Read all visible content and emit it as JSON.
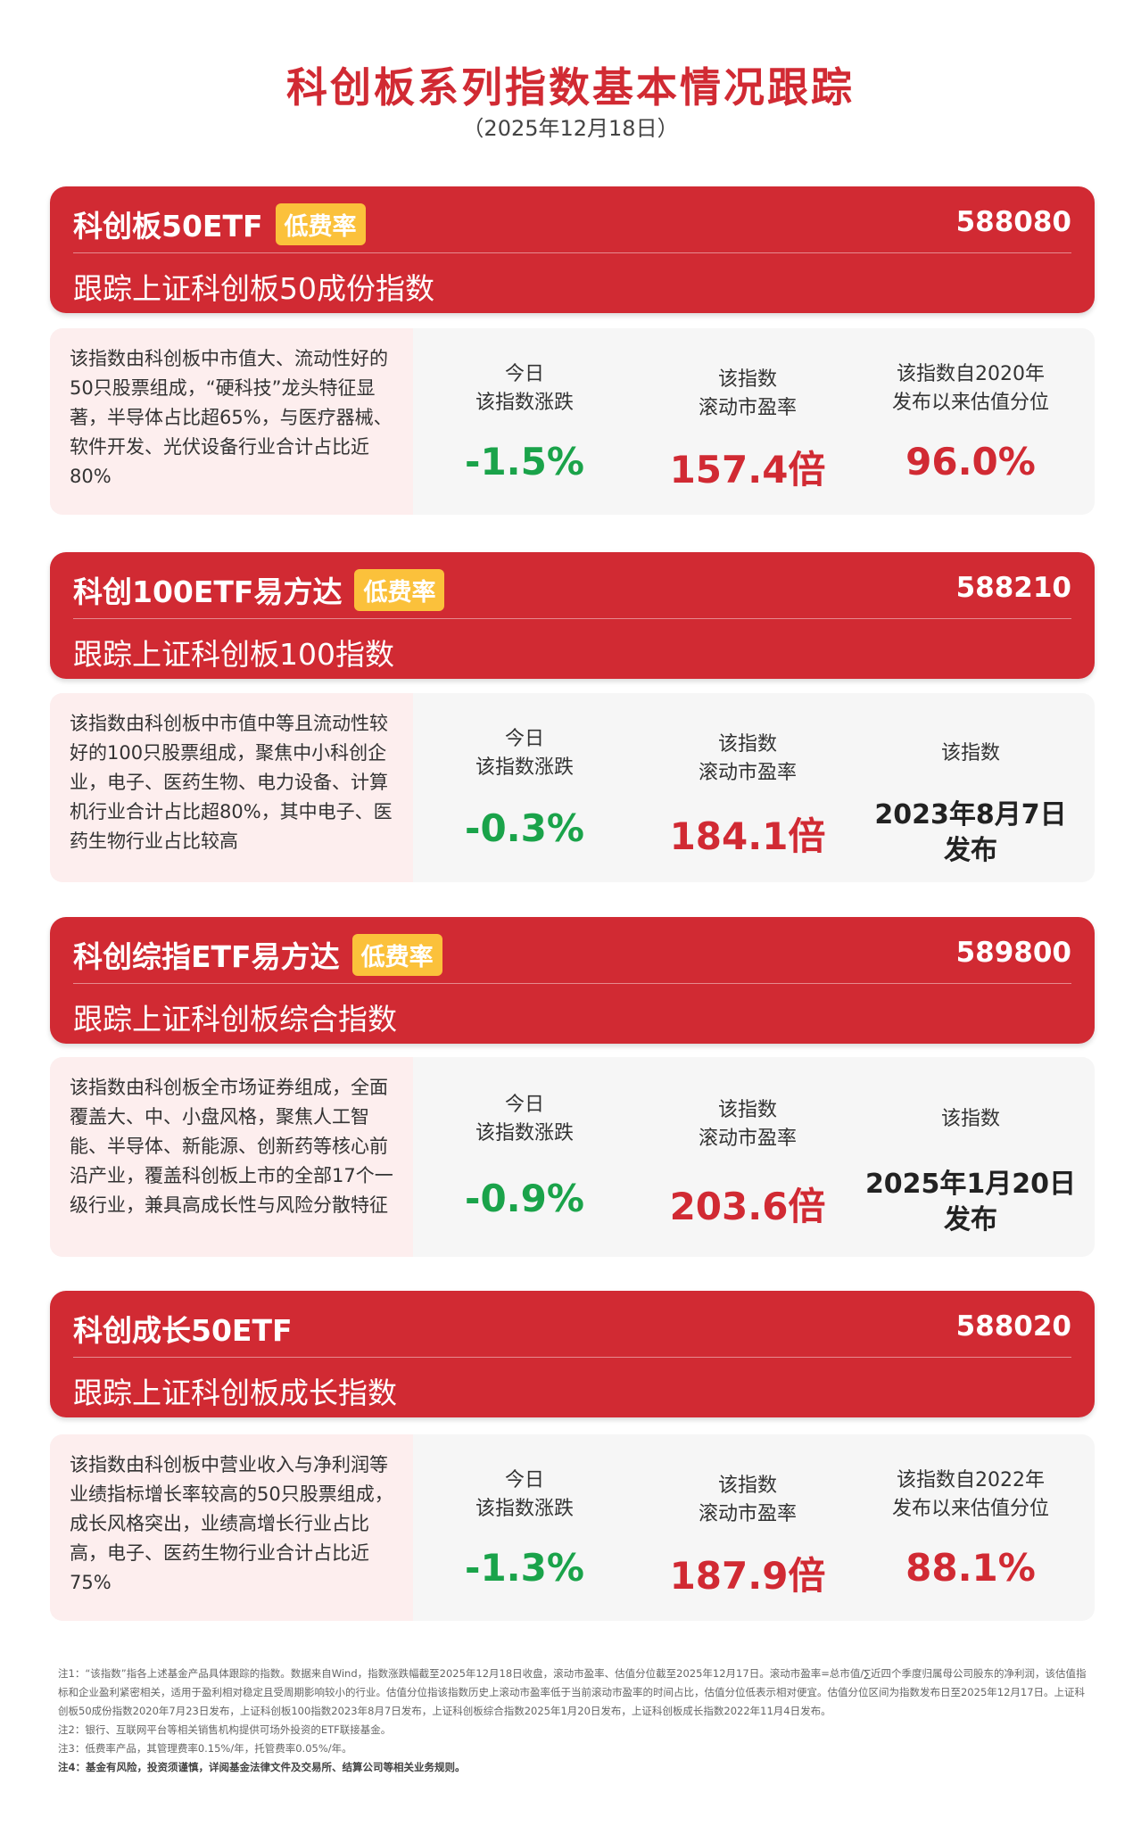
{
  "header": {
    "title": "科创板系列指数基本情况跟踪",
    "date": "（2025年12月18日）"
  },
  "cards": [
    {
      "fund": "科创板50ETF",
      "badge": "低费率",
      "code": "588080",
      "track": "跟踪上证科创板50成份指数",
      "desc": "该指数由科创板中市值大、流动性好的50只股票组成，“硬科技”龙头特征显著，半导体占比超65%，与医疗器械、软件开发、光伏设备行业合计占比近80%",
      "change_label1": "今日",
      "change_label2": "该指数涨跌",
      "change": "-1.5%",
      "pe_label1": "该指数",
      "pe_label2": "滚动市盈率",
      "pe": "157.4倍",
      "third_label1": "该指数自2020年",
      "third_label2": "发布以来估值分位",
      "third_value": "96.0%"
    },
    {
      "fund": "科创100ETF易方达",
      "badge": "低费率",
      "code": "588210",
      "track": "跟踪上证科创板100指数",
      "desc": "该指数由科创板中市值中等且流动性较好的100只股票组成，聚焦中小科创企业，电子、医药生物、电力设备、计算机行业合计占比超80%，其中电子、医药生物行业占比较高",
      "change_label1": "今日",
      "change_label2": "该指数涨跌",
      "change": "-0.3%",
      "pe_label1": "该指数",
      "pe_label2": "滚动市盈率",
      "pe": "184.1倍",
      "third_label1": "该指数",
      "third_date1": "2023年8月7日",
      "third_date2": "发布"
    },
    {
      "fund": "科创综指ETF易方达",
      "badge": "低费率",
      "code": "589800",
      "track": "跟踪上证科创板综合指数",
      "desc": "该指数由科创板全市场证券组成，全面覆盖大、中、小盘风格，聚焦人工智能、半导体、新能源、创新药等核心前沿产业，覆盖科创板上市的全部17个一级行业，兼具高成长性与风险分散特征",
      "change_label1": "今日",
      "change_label2": "该指数涨跌",
      "change": "-0.9%",
      "pe_label1": "该指数",
      "pe_label2": "滚动市盈率",
      "pe": "203.6倍",
      "third_label1": "该指数",
      "third_date1": "2025年1月20日",
      "third_date2": "发布"
    },
    {
      "fund": "科创成长50ETF",
      "code": "588020",
      "track": "跟踪上证科创板成长指数",
      "desc": "该指数由科创板中营业收入与净利润等业绩指标增长率较高的50只股票组成，成长风格突出，业绩高增长行业占比高，电子、医药生物行业合计占比近75%",
      "change_label1": "今日",
      "change_label2": "该指数涨跌",
      "change": "-1.3%",
      "pe_label1": "该指数",
      "pe_label2": "滚动市盈率",
      "pe": "187.9倍",
      "third_label1": "该指数自2022年",
      "third_label2": "发布以来估值分位",
      "third_value": "88.1%"
    }
  ],
  "notes": [
    "注1：“该指数”指各上述基金产品具体跟踪的指数。数据来自Wind，指数涨跌幅截至2025年12月18日收盘，滚动市盈率、估值分位截至2025年12月17日。滚动市盈率=总市值/∑近四个季度归属母公司股东的净利润，该估值指标和企业盈利紧密相关，适用于盈利相对稳定且受周期影响较小的行业。估值分位指该指数历史上滚动市盈率低于当前滚动市盈率的时间占比，估值分位低表示相对便宜。估值分位区间为指数发布日至2025年12月17日。上证科创板50成份指数2020年7月23日发布，上证科创板100指数2023年8月7日发布，上证科创板综合指数2025年1月20日发布，上证科创板成长指数2022年11月4日发布。",
    "注2：银行、互联网平台等相关销售机构提供可场外投资的ETF联接基金。",
    "注3：低费率产品，其管理费率0.15%/年，托管费率0.05%/年。",
    "注4：基金有风险，投资须谨慎，详阅基金法律文件及交易所、结算公司等相关业务规则。"
  ],
  "colors": {
    "brand_red": "#d12a33",
    "badge_yellow": "#fbc13b",
    "down_green": "#1aa34a"
  }
}
